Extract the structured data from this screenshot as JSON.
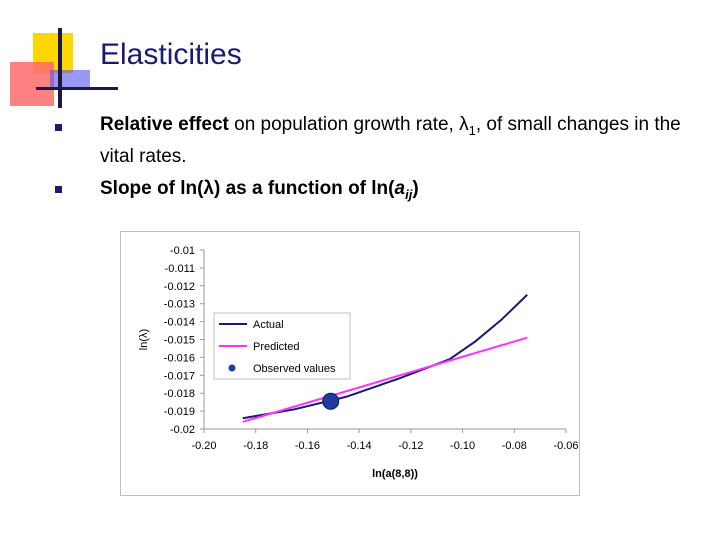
{
  "slide": {
    "title": "Elasticities",
    "bullets": [
      {
        "bold": "Relative effect",
        "rest": " on population growth rate, λ",
        "sub": "1",
        "tail": ", of small changes in the vital rates."
      },
      {
        "text": "Slope of ln(λ) as a function of ln(",
        "italic": "a",
        "sub": "ij",
        "close": ")"
      }
    ]
  },
  "colors": {
    "title": "#1a1a6e",
    "actual": "#1a1a6e",
    "predicted": "#ff33ff",
    "observed": "#1f3b9e",
    "deco_yellow": "#ffd700",
    "deco_pink": "#ff6666",
    "deco_blue": "#4d4dff"
  },
  "chart_data": {
    "type": "line",
    "xlabel": "ln(a(8,8))",
    "ylabel": "ln(λ)",
    "xlim": [
      -0.2,
      -0.06
    ],
    "ylim": [
      -0.02,
      -0.01
    ],
    "xticks": [
      "-0.20",
      "-0.18",
      "-0.16",
      "-0.14",
      "-0.12",
      "-0.10",
      "-0.08",
      "-0.06"
    ],
    "xtick_values": [
      -0.2,
      -0.18,
      -0.16,
      -0.14,
      -0.12,
      -0.1,
      -0.08,
      -0.06
    ],
    "yticks": [
      "-0.01",
      "-0.011",
      "-0.012",
      "-0.013",
      "-0.014",
      "-0.015",
      "-0.016",
      "-0.017",
      "-0.018",
      "-0.019",
      "-0.02"
    ],
    "ytick_values": [
      -0.01,
      -0.011,
      -0.012,
      -0.013,
      -0.014,
      -0.015,
      -0.016,
      -0.017,
      -0.018,
      -0.019,
      -0.02
    ],
    "series": [
      {
        "name": "Actual",
        "x": [
          -0.185,
          -0.165,
          -0.145,
          -0.125,
          -0.105,
          -0.095,
          -0.085,
          -0.075
        ],
        "y": [
          -0.0194,
          -0.0189,
          -0.0182,
          -0.0172,
          -0.0161,
          -0.0151,
          -0.0139,
          -0.0125
        ]
      },
      {
        "name": "Predicted",
        "x": [
          -0.185,
          -0.075
        ],
        "y": [
          -0.0196,
          -0.0149
        ]
      },
      {
        "name": "Observed values",
        "x": [
          -0.151
        ],
        "y": [
          -0.01845
        ],
        "marker": "circle"
      }
    ],
    "legend": "upper-left",
    "grid": false
  }
}
